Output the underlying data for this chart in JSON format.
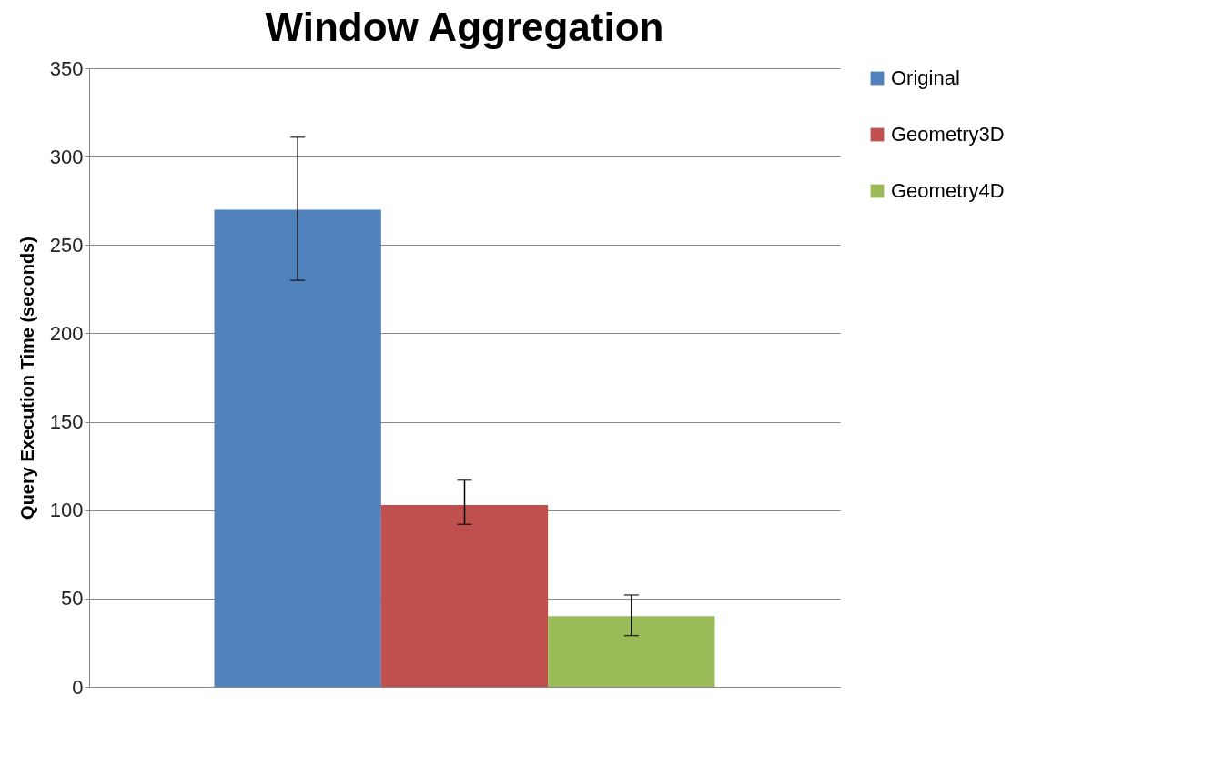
{
  "chart_data": {
    "type": "bar",
    "title": "Window Aggregation",
    "ylabel": "Query Execution Time (seconds)",
    "categories": [
      null
    ],
    "series": [
      {
        "name": "Original",
        "color": "#4f81bd",
        "values": [
          270
        ],
        "errors": [
          [
            230,
            311
          ]
        ]
      },
      {
        "name": "Geometry3D",
        "color": "#c0504d",
        "values": [
          103
        ],
        "errors": [
          [
            92,
            117
          ]
        ]
      },
      {
        "name": "Geometry4D",
        "color": "#9bbb59",
        "values": [
          40
        ],
        "errors": [
          [
            29,
            52
          ]
        ]
      }
    ],
    "ylim": [
      0,
      350
    ],
    "yticks": [
      0,
      50,
      100,
      150,
      200,
      250,
      300,
      350
    ],
    "grid": "y",
    "legend": "right"
  }
}
